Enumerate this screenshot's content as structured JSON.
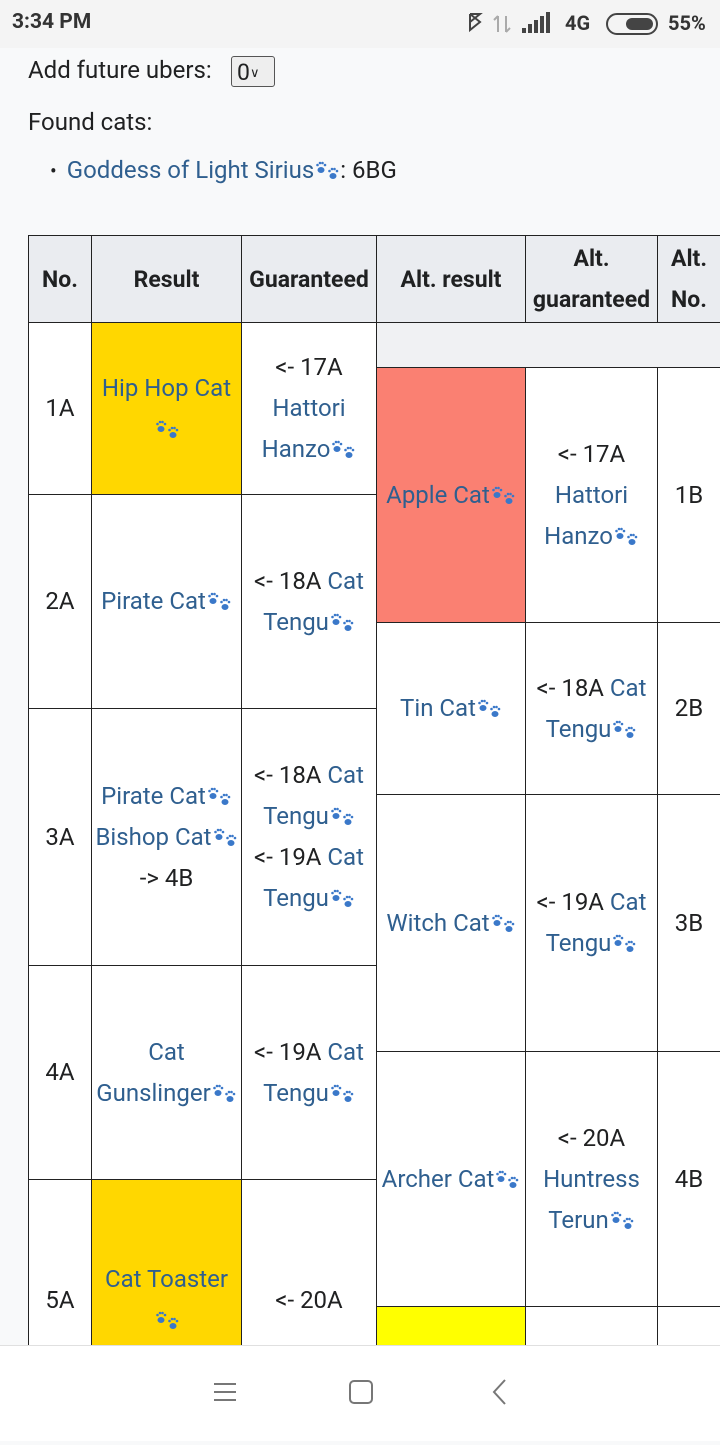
{
  "status_bar": {
    "time": "3:34 PM",
    "network": "4G",
    "battery": "55%"
  },
  "controls": {
    "future_ubers_label": "Add future ubers:",
    "future_ubers_value": "0",
    "found_label": "Found cats:",
    "found": [
      {
        "cat": "Goddess of Light Sirius",
        "note": ": 6BG"
      }
    ]
  },
  "table": {
    "headers": [
      "No.",
      "Result",
      "Guaranteed",
      "Alt. result",
      "Alt. guaranteed",
      "Alt. No."
    ],
    "rows": [
      {
        "no": "1A",
        "color": "#ffd700",
        "result": [
          {
            "cat": "Hip Hop Cat"
          }
        ],
        "guaranteed": [
          {
            "from": "<- 17A",
            "cat": "Hattori Hanzo"
          }
        ]
      },
      {
        "no": "2A",
        "result": [
          {
            "cat": "Pirate Cat"
          }
        ],
        "guaranteed": [
          {
            "from": "<- 18A",
            "cat": "Cat Tengu"
          }
        ]
      },
      {
        "no": "3A",
        "result": [
          {
            "cat": "Pirate Cat"
          },
          {
            "cat": "Bishop Cat",
            "to": "-> 4B"
          }
        ],
        "guaranteed": [
          {
            "from": "<- 18A",
            "cat": "Cat Tengu"
          },
          {
            "from": "<- 19A",
            "cat": "Cat Tengu"
          }
        ]
      },
      {
        "no": "4A",
        "result": [
          {
            "cat": "Cat Gunslinger"
          }
        ],
        "guaranteed": [
          {
            "from": "<- 19A",
            "cat": "Cat Tengu"
          }
        ]
      },
      {
        "no": "5A",
        "color": "#ffd700",
        "result": [
          {
            "cat": "Cat Toaster"
          }
        ],
        "guaranteed": [
          {
            "from": "<- 20A"
          }
        ]
      }
    ],
    "alt_rows": [
      {
        "no": "1B",
        "color": "#fa8072",
        "result": [
          {
            "cat": "Apple Cat"
          }
        ],
        "guaranteed": [
          {
            "from": "<- 17A",
            "cat": "Hattori Hanzo"
          }
        ]
      },
      {
        "no": "2B",
        "result": [
          {
            "cat": "Tin Cat"
          }
        ],
        "guaranteed": [
          {
            "from": "<- 18A",
            "cat": "Cat Tengu"
          }
        ]
      },
      {
        "no": "3B",
        "result": [
          {
            "cat": "Witch Cat"
          }
        ],
        "guaranteed": [
          {
            "from": "<- 19A",
            "cat": "Cat Tengu"
          }
        ]
      },
      {
        "no": "4B",
        "result": [
          {
            "cat": "Archer Cat"
          }
        ],
        "guaranteed": [
          {
            "from": "<- 20A",
            "cat": "Huntress Terun"
          }
        ]
      },
      {
        "color": "#ffff00",
        "result": [],
        "guaranteed": []
      }
    ]
  }
}
